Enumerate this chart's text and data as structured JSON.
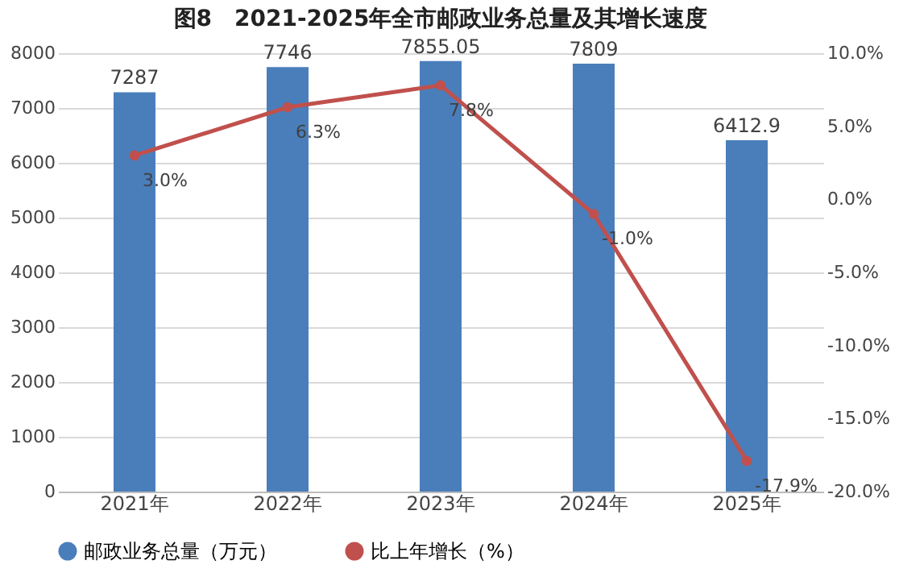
{
  "chart_data": {
    "type": "bar",
    "title": "图8　2021-2025年全市邮政业务总量及其增长速度",
    "categories": [
      "2021年",
      "2022年",
      "2023年",
      "2024年",
      "2025年"
    ],
    "series": [
      {
        "name": "邮政业务总量（万元）",
        "type": "bar",
        "color": "#4a7ebb",
        "values": [
          7287,
          7746,
          7855.05,
          7809,
          6412.9
        ]
      },
      {
        "name": "比上年增长（%）",
        "type": "line",
        "axis": "y2",
        "color": "#c0504d",
        "values": [
          3.0,
          6.3,
          7.8,
          -1.0,
          -17.9
        ],
        "value_labels": [
          "3.0%",
          "6.3%",
          "7.8%",
          "-1.0%",
          "-17.9%"
        ]
      }
    ],
    "data_labels": true,
    "ylim": [
      0,
      8000
    ],
    "yticks": [
      0,
      1000,
      2000,
      3000,
      4000,
      5000,
      6000,
      7000,
      8000
    ],
    "y2lim": [
      -20,
      10
    ],
    "y2ticks": [
      {
        "value": -20,
        "label": "-20.0%"
      },
      {
        "value": -15,
        "label": "-15.0%"
      },
      {
        "value": -10,
        "label": "-10.0%"
      },
      {
        "value": -5,
        "label": "-5.0%"
      },
      {
        "value": 0,
        "label": "0.0%"
      },
      {
        "value": 5,
        "label": "5.0%"
      },
      {
        "value": 10,
        "label": "10.0%"
      }
    ],
    "grid": "y",
    "legend": "bottom",
    "marker": "circle",
    "line_style": "solid"
  }
}
